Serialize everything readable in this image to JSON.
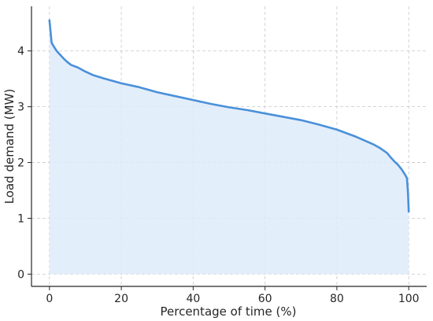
{
  "chart_data": {
    "type": "area",
    "xlabel": "Percentage of time (%)",
    "ylabel": "Load demand (MW)",
    "xlim": [
      -5,
      105
    ],
    "ylim": [
      -0.22,
      4.8
    ],
    "xticks": [
      0,
      20,
      40,
      60,
      80,
      100
    ],
    "yticks": [
      0,
      1,
      2,
      3,
      4
    ],
    "grid": true,
    "colors": {
      "line": "#4a90d9",
      "fill": "#deebfa",
      "grid": "#c8c8c8",
      "axis": "#262626"
    },
    "series": [
      {
        "x": [
          0,
          0.3,
          0.6,
          1,
          2,
          3,
          4,
          5,
          6,
          8,
          10,
          12,
          15,
          20,
          25,
          30,
          35,
          40,
          45,
          50,
          55,
          60,
          65,
          70,
          75,
          80,
          85,
          90,
          92,
          94,
          95,
          96,
          97,
          98,
          98.5,
          99,
          99.5,
          99.8,
          100
        ],
        "y": [
          4.55,
          4.35,
          4.15,
          4.1,
          4.0,
          3.93,
          3.86,
          3.8,
          3.75,
          3.7,
          3.63,
          3.57,
          3.51,
          3.42,
          3.35,
          3.26,
          3.19,
          3.12,
          3.05,
          2.99,
          2.94,
          2.88,
          2.82,
          2.76,
          2.68,
          2.59,
          2.47,
          2.33,
          2.26,
          2.17,
          2.09,
          2.02,
          1.96,
          1.88,
          1.83,
          1.78,
          1.72,
          1.45,
          1.12
        ]
      }
    ]
  }
}
